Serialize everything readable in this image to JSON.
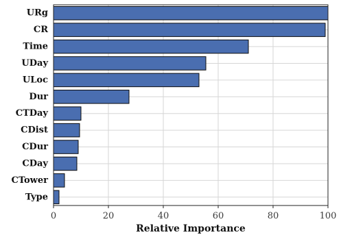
{
  "chart_data": {
    "type": "bar",
    "orientation": "horizontal",
    "categories": [
      "URg",
      "CR",
      "Time",
      "UDay",
      "ULoc",
      "Dur",
      "CTDay",
      "CDist",
      "CDur",
      "CDay",
      "CTower",
      "Type"
    ],
    "values": [
      100,
      99,
      71,
      55.5,
      53,
      27.5,
      10,
      9.5,
      9,
      8.5,
      4,
      2
    ],
    "xlabel": "Relative Importance",
    "ylabel": "",
    "xlim": [
      0,
      100
    ],
    "xticks": [
      0,
      20,
      40,
      60,
      80,
      100
    ],
    "grid": true,
    "colors": {
      "bar": "#4a6eb0",
      "bar_edge": "#0d0d0d",
      "grid": "#d6d6d6"
    }
  }
}
